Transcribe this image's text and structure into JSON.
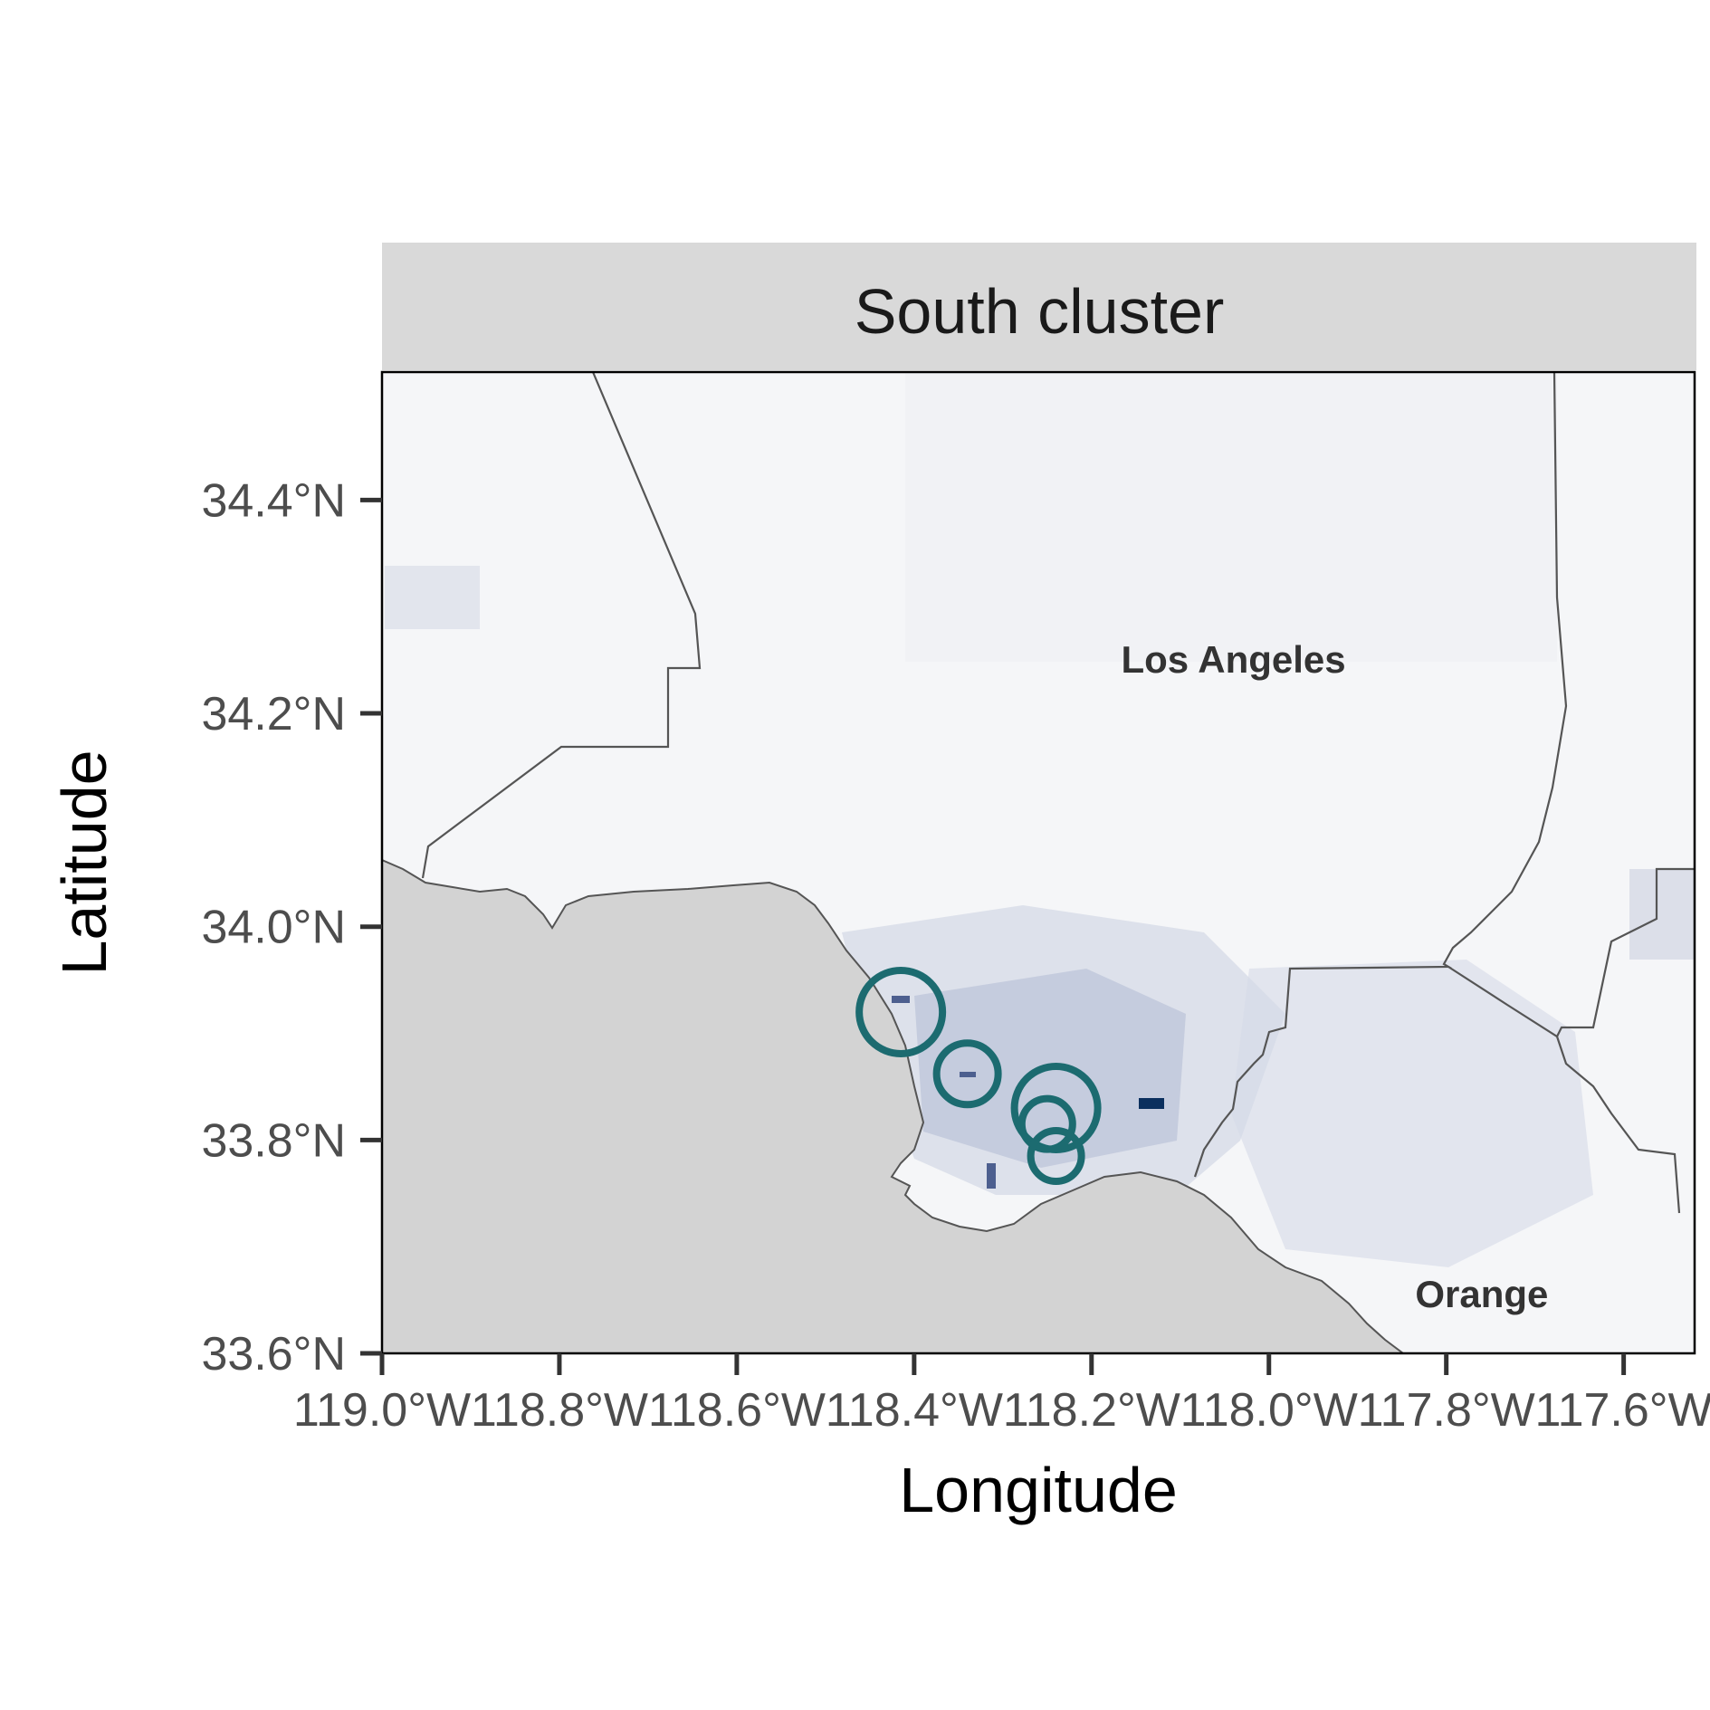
{
  "facet": {
    "title": "South cluster"
  },
  "axes": {
    "x_title": "Longitude",
    "y_title": "Latitude",
    "x_ticks": [
      "119.0°W",
      "118.8°W",
      "118.6°W",
      "118.4°W",
      "118.2°W",
      "118.0°W",
      "117.8°W",
      "117.6°W"
    ],
    "y_ticks": [
      "33.6°N",
      "33.8°N",
      "34.0°N",
      "34.2°N",
      "34.4°N"
    ],
    "x_range": [
      -119.0,
      -117.52
    ],
    "y_range": [
      33.6,
      34.52
    ]
  },
  "regions": [
    {
      "name": "Los Angeles",
      "lon": -118.04,
      "lat": 34.25
    },
    {
      "name": "Orange",
      "lon": -117.76,
      "lat": 33.655
    }
  ],
  "clusters": [
    {
      "lon": -118.415,
      "lat": 33.92,
      "size": "large"
    },
    {
      "lon": -118.34,
      "lat": 33.862,
      "size": "medium"
    },
    {
      "lon": -118.24,
      "lat": 33.83,
      "size": "large"
    },
    {
      "lon": -118.25,
      "lat": 33.815,
      "size": "small"
    },
    {
      "lon": -118.24,
      "lat": 33.785,
      "size": "small"
    }
  ],
  "colors": {
    "ocean": "#d3d3d3",
    "land": "#f4f5f7",
    "boundary": "#555555",
    "cluster_ring": "#1c6b70",
    "high_value": "#0b2f5e"
  }
}
